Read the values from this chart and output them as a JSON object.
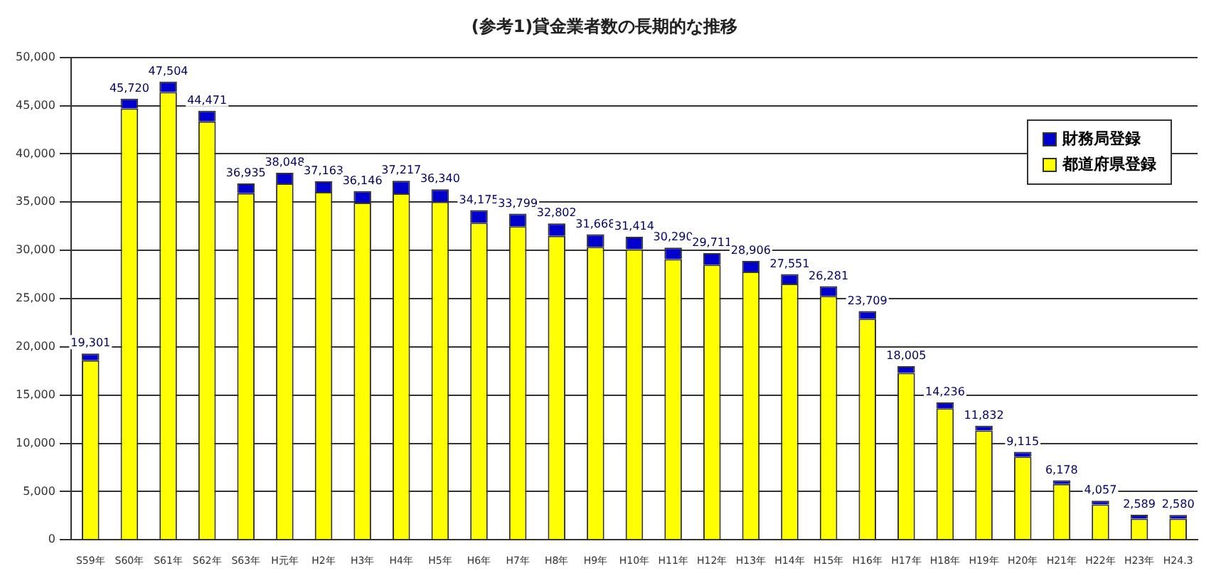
{
  "chart_data": {
    "type": "bar",
    "title": "(参考1)貸金業者数の長期的な推移",
    "stacked": true,
    "categories": [
      "S59年",
      "S60年",
      "S61年",
      "S62年",
      "S63年",
      "H元年",
      "H2年",
      "H3年",
      "H4年",
      "H5年",
      "H6年",
      "H7年",
      "H8年",
      "H9年",
      "H10年",
      "H11年",
      "H12年",
      "H13年",
      "H14年",
      "H15年",
      "H16年",
      "H17年",
      "H18年",
      "H19年",
      "H20年",
      "H21年",
      "H22年",
      "H23年",
      "H24.3"
    ],
    "series": [
      {
        "name": "都道府県登録",
        "color": "#ffff00",
        "values": [
          18601,
          44720,
          46404,
          43371,
          35935,
          36948,
          36063,
          34946,
          35917,
          35040,
          32875,
          32499,
          31502,
          30368,
          30114,
          29090,
          28511,
          27806,
          26551,
          25281,
          22909,
          17305,
          13636,
          11332,
          8615,
          5778,
          3657,
          2189,
          2180
        ]
      },
      {
        "name": "財務局登録",
        "color": "#0000cc",
        "values": [
          700,
          1000,
          1100,
          1100,
          1000,
          1100,
          1100,
          1200,
          1300,
          1300,
          1300,
          1300,
          1300,
          1300,
          1300,
          1200,
          1200,
          1100,
          1000,
          1000,
          800,
          700,
          600,
          500,
          500,
          400,
          400,
          400,
          400
        ]
      }
    ],
    "totals": [
      "19,301",
      "45,720",
      "47,504",
      "44,471",
      "36,935",
      "38,048",
      "37,163",
      "36,146",
      "37,217",
      "36,340",
      "34,175",
      "33,799",
      "32,802",
      "31,668",
      "31,414",
      "30,290",
      "29,711",
      "28,906",
      "27,551",
      "26,281",
      "23,709",
      "18,005",
      "14,236",
      "11,832",
      "9,115",
      "6,178",
      "4,057",
      "2,589",
      "2,580"
    ],
    "ylim": [
      0,
      50000
    ],
    "yticks": [
      {
        "value": 0,
        "label": "0"
      },
      {
        "value": 5000,
        "label": "5,000"
      },
      {
        "value": 10000,
        "label": "10,000"
      },
      {
        "value": 15000,
        "label": "15,000"
      },
      {
        "value": 20000,
        "label": "20,000"
      },
      {
        "value": 25000,
        "label": "25,000"
      },
      {
        "value": 30000,
        "label": "30,000"
      },
      {
        "value": 35000,
        "label": "35,000"
      },
      {
        "value": 40000,
        "label": "40,000"
      },
      {
        "value": 45000,
        "label": "45,000"
      },
      {
        "value": 50000,
        "label": "50,000"
      }
    ],
    "grid": "y",
    "legend": "top right"
  }
}
